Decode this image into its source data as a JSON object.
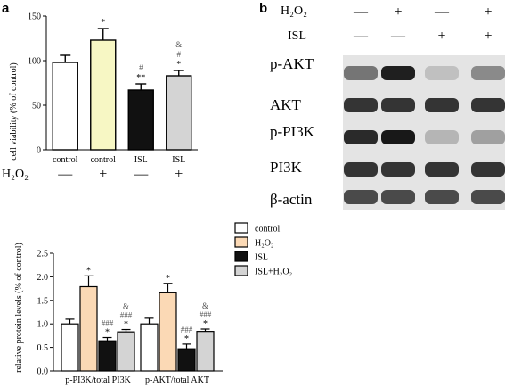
{
  "panel_a_label": "a",
  "panel_b_label": "b",
  "treatment_rows": {
    "h2o2_label": "H₂O₂",
    "isl_label": "ISL",
    "h2o2_signs": [
      "—",
      "+",
      "—",
      "+"
    ],
    "isl_signs": [
      "—",
      "—",
      "+",
      "+"
    ],
    "a_h2o2_signs": [
      "—",
      "+",
      "—",
      "+"
    ]
  },
  "blot": {
    "rows": [
      {
        "label": "p-AKT",
        "intensity": [
          0.55,
          0.95,
          0.2,
          0.45
        ]
      },
      {
        "label": "AKT",
        "intensity": [
          0.85,
          0.85,
          0.85,
          0.85
        ]
      },
      {
        "label": "p-PI3K",
        "intensity": [
          0.9,
          0.98,
          0.25,
          0.35
        ]
      },
      {
        "label": "PI3K",
        "intensity": [
          0.85,
          0.85,
          0.85,
          0.85
        ]
      },
      {
        "label": "β-actin",
        "intensity": [
          0.75,
          0.75,
          0.75,
          0.75
        ]
      }
    ]
  },
  "chart_data": [
    {
      "type": "bar",
      "title": "",
      "xlabel": "",
      "ylabel": "cell viability (% of control)",
      "ylim": [
        0,
        150
      ],
      "yticks": [
        "0",
        "50",
        "100",
        "150"
      ],
      "categories": [
        "control",
        "control",
        "ISL",
        "ISL"
      ],
      "values": [
        98,
        123,
        67,
        83
      ],
      "errors": [
        8,
        13,
        7,
        6
      ],
      "colors": [
        "#ffffff",
        "#f7f7c4",
        "#111111",
        "#d4d4d4"
      ],
      "annotations": [
        [],
        [
          "*"
        ],
        [
          "**",
          "#"
        ],
        [
          "*",
          "#",
          "&"
        ]
      ],
      "grid": false
    },
    {
      "type": "bar",
      "title": "",
      "xlabel": "",
      "ylabel": "relative protein levels (% of control)",
      "ylim": [
        0,
        2.5
      ],
      "yticks": [
        "0.0",
        "0.5",
        "1.0",
        "1.5",
        "2.0",
        "2.5"
      ],
      "categories": [
        "p-PI3K/total PI3K",
        "p-AKT/total AKT"
      ],
      "series": [
        {
          "name": "control",
          "values": [
            1.0,
            1.0
          ],
          "errors": [
            0.1,
            0.12
          ],
          "color": "#ffffff"
        },
        {
          "name": "H₂O₂",
          "values": [
            1.79,
            1.66
          ],
          "errors": [
            0.23,
            0.2
          ],
          "color": "#fbd9b5"
        },
        {
          "name": "ISL",
          "values": [
            0.64,
            0.47
          ],
          "errors": [
            0.07,
            0.1
          ],
          "color": "#111111"
        },
        {
          "name": "ISL+H₂O₂",
          "values": [
            0.83,
            0.84
          ],
          "errors": [
            0.05,
            0.05
          ],
          "color": "#d4d4d4"
        }
      ],
      "annotations": [
        [
          [],
          [
            "*"
          ],
          [
            "*",
            "###"
          ],
          [
            "*",
            "###",
            "&"
          ]
        ],
        [
          [],
          [
            "*"
          ],
          [
            "*",
            "###"
          ],
          [
            "*",
            "###",
            "&"
          ]
        ]
      ],
      "legend": "top-right",
      "grid": false
    }
  ]
}
